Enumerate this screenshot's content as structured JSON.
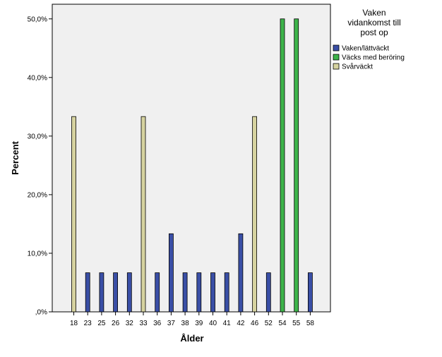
{
  "chart_data": {
    "type": "bar",
    "xlabel": "Ålder",
    "ylabel": "Percent",
    "ylim": [
      0,
      52.5
    ],
    "y_ticks": [
      0,
      10,
      20,
      30,
      40,
      50
    ],
    "y_tick_labels": [
      ",0%",
      "10,0%",
      "20,0%",
      "30,0%",
      "40,0%",
      "50,0%"
    ],
    "grid": false,
    "legend_position": "top-right",
    "legend_title": "Vaken vidankomst till post op",
    "legend_title_lines": [
      "Vaken",
      "vidankomst till",
      "post op"
    ],
    "categories": [
      "18",
      "23",
      "25",
      "26",
      "32",
      "33",
      "36",
      "37",
      "38",
      "39",
      "40",
      "41",
      "42",
      "46",
      "52",
      "54",
      "55",
      "58"
    ],
    "series": [
      {
        "name": "Vaken/lättväckt",
        "color": "#3a4fa6",
        "values": [
          0,
          6.67,
          6.67,
          6.67,
          6.67,
          0,
          6.67,
          13.33,
          6.67,
          6.67,
          6.67,
          6.67,
          13.33,
          0,
          6.67,
          0,
          0,
          6.67
        ]
      },
      {
        "name": "Väcks med beröring",
        "color": "#3db34a",
        "values": [
          0,
          0,
          0,
          0,
          0,
          0,
          0,
          0,
          0,
          0,
          0,
          0,
          0,
          0,
          0,
          50,
          50,
          0
        ]
      },
      {
        "name": "Svårväckt",
        "color": "#d6d3a0",
        "values": [
          33.33,
          0,
          0,
          0,
          0,
          33.33,
          0,
          0,
          0,
          0,
          0,
          0,
          0,
          33.33,
          0,
          0,
          0,
          0
        ]
      }
    ]
  },
  "colors": {
    "plot_background": "#f0f0f0",
    "bar_outline": "#000000"
  }
}
